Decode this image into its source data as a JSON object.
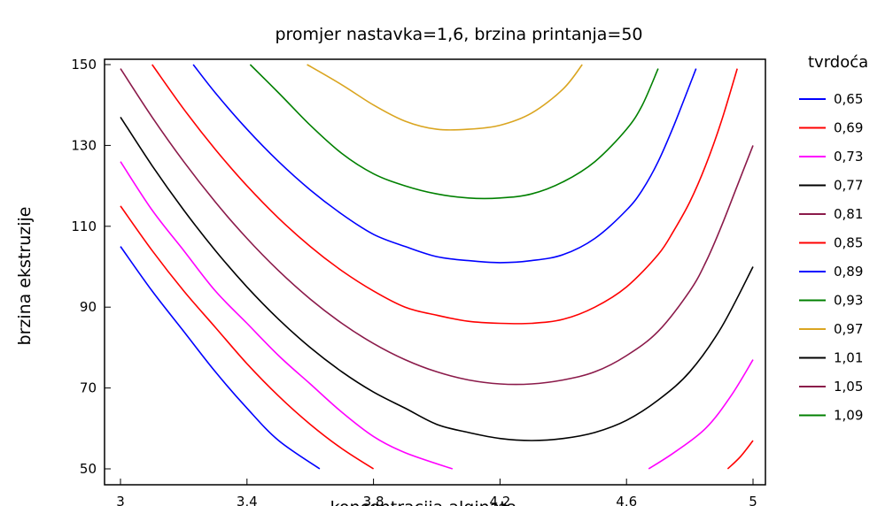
{
  "chart_data": {
    "type": "contour",
    "title": "promjer nastavka=1,6, brzina printanja=50",
    "xlabel": "koncentracija alginata",
    "ylabel": "brzina ekstruzije",
    "xlim": [
      3,
      5
    ],
    "ylim": [
      50,
      150
    ],
    "x_ticks": [
      3,
      3.4,
      3.8,
      4.2,
      4.6,
      5
    ],
    "x_tick_labels": [
      "3",
      "3,4",
      "3,8",
      "4,2",
      "4,6",
      "5"
    ],
    "y_ticks": [
      50,
      70,
      90,
      110,
      130,
      150
    ],
    "y_tick_labels": [
      "50",
      "70",
      "90",
      "110",
      "130",
      "150"
    ],
    "legend_title": "tvrdoća",
    "legend_position": "right",
    "series": [
      {
        "name": "0,65",
        "color": "#0000ff",
        "x": [
          3.0,
          3.1,
          3.2,
          3.3,
          3.4,
          3.5,
          3.63
        ],
        "y": [
          105,
          94,
          84,
          74,
          65,
          57,
          50
        ]
      },
      {
        "name": "0,69",
        "color": "#ff0000",
        "x": [
          3.0,
          3.1,
          3.2,
          3.3,
          3.4,
          3.5,
          3.6,
          3.7,
          3.8
        ],
        "y": [
          115,
          104,
          94,
          85,
          76,
          68,
          61,
          55,
          50
        ]
      },
      {
        "name": "0,73",
        "color": "#ff00ff",
        "x": [
          3.0,
          3.1,
          3.2,
          3.3,
          3.4,
          3.5,
          3.6,
          3.7,
          3.8,
          3.9,
          4.05
        ],
        "y": [
          126,
          114,
          104,
          94,
          86,
          78,
          71,
          64,
          58,
          54,
          50
        ]
      },
      {
        "name": "0,73",
        "color": "#ff00ff",
        "x": [
          4.67,
          4.75,
          4.85,
          4.93,
          5.0
        ],
        "y": [
          50,
          54,
          60,
          68,
          77
        ]
      },
      {
        "name": "0,77",
        "color": "#000000",
        "x": [
          3.0,
          3.1,
          3.2,
          3.3,
          3.4,
          3.5,
          3.6,
          3.7,
          3.8,
          3.9,
          4.0,
          4.1,
          4.2,
          4.3,
          4.4,
          4.5,
          4.6,
          4.7,
          4.8,
          4.9,
          5.0
        ],
        "y": [
          137,
          125,
          114,
          104,
          95,
          87,
          80,
          74,
          69,
          65,
          61,
          59,
          57.5,
          57,
          57.5,
          59,
          62,
          67,
          74,
          85,
          100
        ]
      },
      {
        "name": "0,81",
        "color": "#8b1a4a",
        "x": [
          3.0,
          3.1,
          3.2,
          3.3,
          3.4,
          3.5,
          3.6,
          3.7,
          3.8,
          3.9,
          4.0,
          4.1,
          4.2,
          4.3,
          4.4,
          4.5,
          4.6,
          4.7,
          4.8,
          4.85,
          4.9,
          4.95,
          5.0
        ],
        "y": [
          149,
          137,
          126,
          116,
          107,
          99,
          92,
          86,
          81,
          77,
          74,
          72,
          71,
          71,
          72,
          74,
          78,
          84,
          94,
          101,
          110,
          120,
          130
        ]
      },
      {
        "name": "0,85",
        "color": "#ff0000",
        "x": [
          3.1,
          3.2,
          3.3,
          3.4,
          3.5,
          3.6,
          3.7,
          3.8,
          3.9,
          4.0,
          4.1,
          4.2,
          4.3,
          4.4,
          4.5,
          4.6,
          4.7,
          4.75,
          4.8,
          4.85,
          4.9,
          4.95
        ],
        "y": [
          150,
          139,
          129,
          120,
          112,
          105,
          99,
          94,
          90,
          88,
          86.5,
          86,
          86,
          87,
          90,
          95,
          103,
          109,
          116,
          125,
          136,
          149
        ]
      },
      {
        "name": "0,89",
        "color": "#0000ff",
        "x": [
          3.23,
          3.3,
          3.4,
          3.5,
          3.6,
          3.7,
          3.8,
          3.9,
          4.0,
          4.1,
          4.2,
          4.3,
          4.4,
          4.5,
          4.6,
          4.65,
          4.7,
          4.75,
          4.82
        ],
        "y": [
          150,
          143,
          134,
          126,
          119,
          113,
          108,
          105,
          102.5,
          101.5,
          101,
          101.5,
          103,
          107,
          114,
          119,
          126,
          135,
          149
        ]
      },
      {
        "name": "0,93",
        "color": "#008000",
        "x": [
          3.41,
          3.5,
          3.6,
          3.7,
          3.8,
          3.9,
          4.0,
          4.1,
          4.2,
          4.3,
          4.4,
          4.5,
          4.6,
          4.65,
          4.7
        ],
        "y": [
          150,
          143,
          135,
          128,
          123,
          120,
          118,
          117,
          117,
          118,
          121,
          126,
          134,
          140,
          149
        ]
      },
      {
        "name": "0,97",
        "color": "#daa520",
        "x": [
          3.59,
          3.7,
          3.8,
          3.9,
          4.0,
          4.1,
          4.2,
          4.3,
          4.4,
          4.46
        ],
        "y": [
          150,
          145,
          140,
          136,
          134,
          134,
          135,
          138,
          144,
          150
        ]
      },
      {
        "name": "1,01",
        "color": "#000000",
        "x": [],
        "y": []
      },
      {
        "name": "1,05",
        "color": "#8b1a4a",
        "x": [],
        "y": []
      },
      {
        "name": "1,09",
        "color": "#008000",
        "x": [],
        "y": []
      },
      {
        "name": "0,69",
        "color": "#ff0000",
        "x": [
          4.92,
          4.96,
          5.0
        ],
        "y": [
          50,
          53,
          57
        ]
      }
    ]
  }
}
